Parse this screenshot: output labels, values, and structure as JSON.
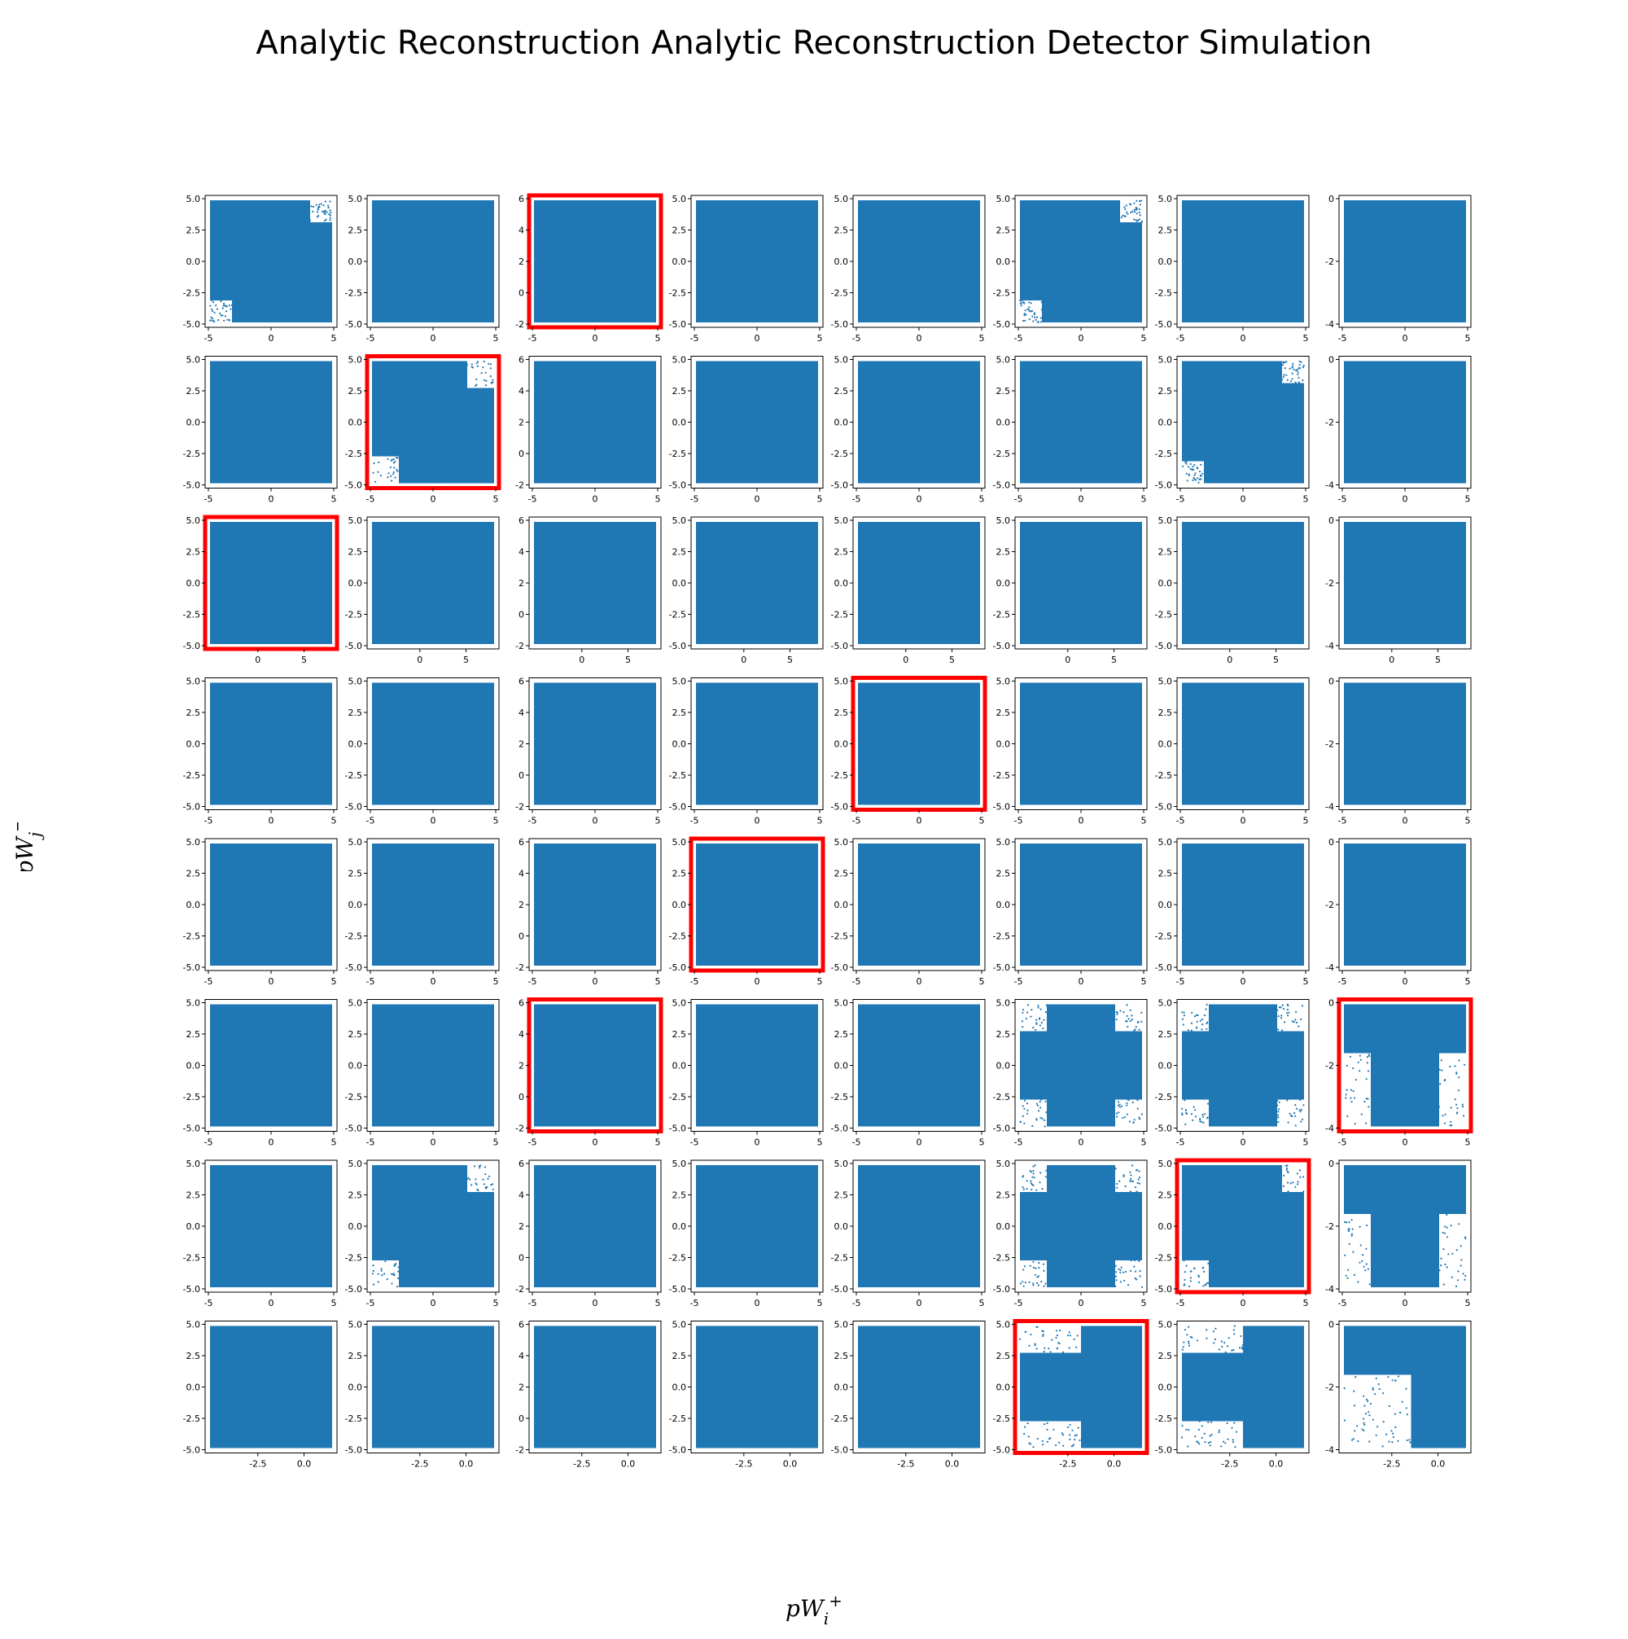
{
  "title": "Analytic Reconstruction Analytic Reconstruction Detector Simulation",
  "xlabel": "pW_i^+",
  "ylabel": "pW_j^-",
  "colors": {
    "points": "#1f77b4",
    "highlight": "#ff0000",
    "axes": "#000000"
  },
  "chart_data": {
    "type": "scatter",
    "grid": "8x8 panels",
    "highlighted_panels": [
      [
        0,
        2
      ],
      [
        1,
        1
      ],
      [
        2,
        0
      ],
      [
        3,
        4
      ],
      [
        4,
        3
      ],
      [
        5,
        2
      ],
      [
        5,
        7
      ],
      [
        6,
        6
      ],
      [
        7,
        5
      ]
    ],
    "row_axes": [
      {
        "xlim": [
          -5,
          5
        ],
        "xticks": [
          "-5",
          "0",
          "5"
        ]
      },
      {
        "xlim": [
          -5,
          5
        ],
        "xticks": [
          "-5",
          "0",
          "5"
        ]
      },
      {
        "xlim": [
          -2.7,
          6.5
        ],
        "xticks": [
          "0",
          "5"
        ]
      },
      {
        "xlim": [
          -5,
          5
        ],
        "xticks": [
          "-5",
          "0",
          "5"
        ]
      },
      {
        "xlim": [
          -5,
          5
        ],
        "xticks": [
          "-5",
          "0",
          "5"
        ]
      },
      {
        "xlim": [
          -5,
          5
        ],
        "xticks": [
          "-5",
          "0",
          "5"
        ]
      },
      {
        "xlim": [
          -5,
          5
        ],
        "xticks": [
          "-5",
          "0",
          "5"
        ]
      },
      {
        "xlim": [
          -5,
          1.8
        ],
        "xticks": [
          "-2.5",
          "0.0"
        ]
      }
    ],
    "col_axes": [
      {
        "ylim": [
          -5,
          5
        ],
        "yticks": [
          "5.0",
          "2.5",
          "0.0",
          "-2.5",
          "-5.0"
        ]
      },
      {
        "ylim": [
          -5,
          5
        ],
        "yticks": [
          "5.0",
          "2.5",
          "0.0",
          "-2.5",
          "-5.0"
        ]
      },
      {
        "ylim": [
          -3.3,
          6.5
        ],
        "yticks": [
          "6",
          "4",
          "2",
          "0",
          "-2"
        ]
      },
      {
        "ylim": [
          -5.3,
          5.3
        ],
        "yticks": [
          "5.0",
          "2.5",
          "0.0",
          "-2.5",
          "-5.0"
        ]
      },
      {
        "ylim": [
          -5.3,
          5.3
        ],
        "yticks": [
          "5.0",
          "2.5",
          "0.0",
          "-2.5",
          "-5.0"
        ]
      },
      {
        "ylim": [
          -5,
          5
        ],
        "yticks": [
          "5.0",
          "2.5",
          "0.0",
          "-2.5",
          "-5.0"
        ]
      },
      {
        "ylim": [
          -5,
          5
        ],
        "yticks": [
          "5.0",
          "2.5",
          "0.0",
          "-2.5",
          "-5.0"
        ]
      },
      {
        "ylim": [
          -5,
          2
        ],
        "yticks": [
          "0",
          "-2",
          "-4"
        ]
      }
    ],
    "panel_shapes": [
      [
        "corners-sparse",
        "full",
        "full",
        "full",
        "full",
        "corners-sparse",
        "full",
        "full"
      ],
      [
        "full",
        "corners-notched",
        "full",
        "full",
        "full",
        "full",
        "corners-sparse",
        "full"
      ],
      [
        "full",
        "full",
        "full",
        "full",
        "full",
        "full",
        "full",
        "full"
      ],
      [
        "full",
        "full",
        "full",
        "full",
        "full",
        "full",
        "full",
        "full"
      ],
      [
        "full",
        "full",
        "full",
        "full",
        "full",
        "full",
        "full",
        "full"
      ],
      [
        "full",
        "full",
        "full",
        "full",
        "full",
        "cross",
        "cross",
        "T-shape"
      ],
      [
        "full",
        "corners-notched",
        "full",
        "full",
        "full",
        "cross",
        "L-shape",
        "T-shape"
      ],
      [
        "full",
        "full",
        "full",
        "full",
        "full",
        "step",
        "step",
        "step-corner"
      ]
    ]
  }
}
